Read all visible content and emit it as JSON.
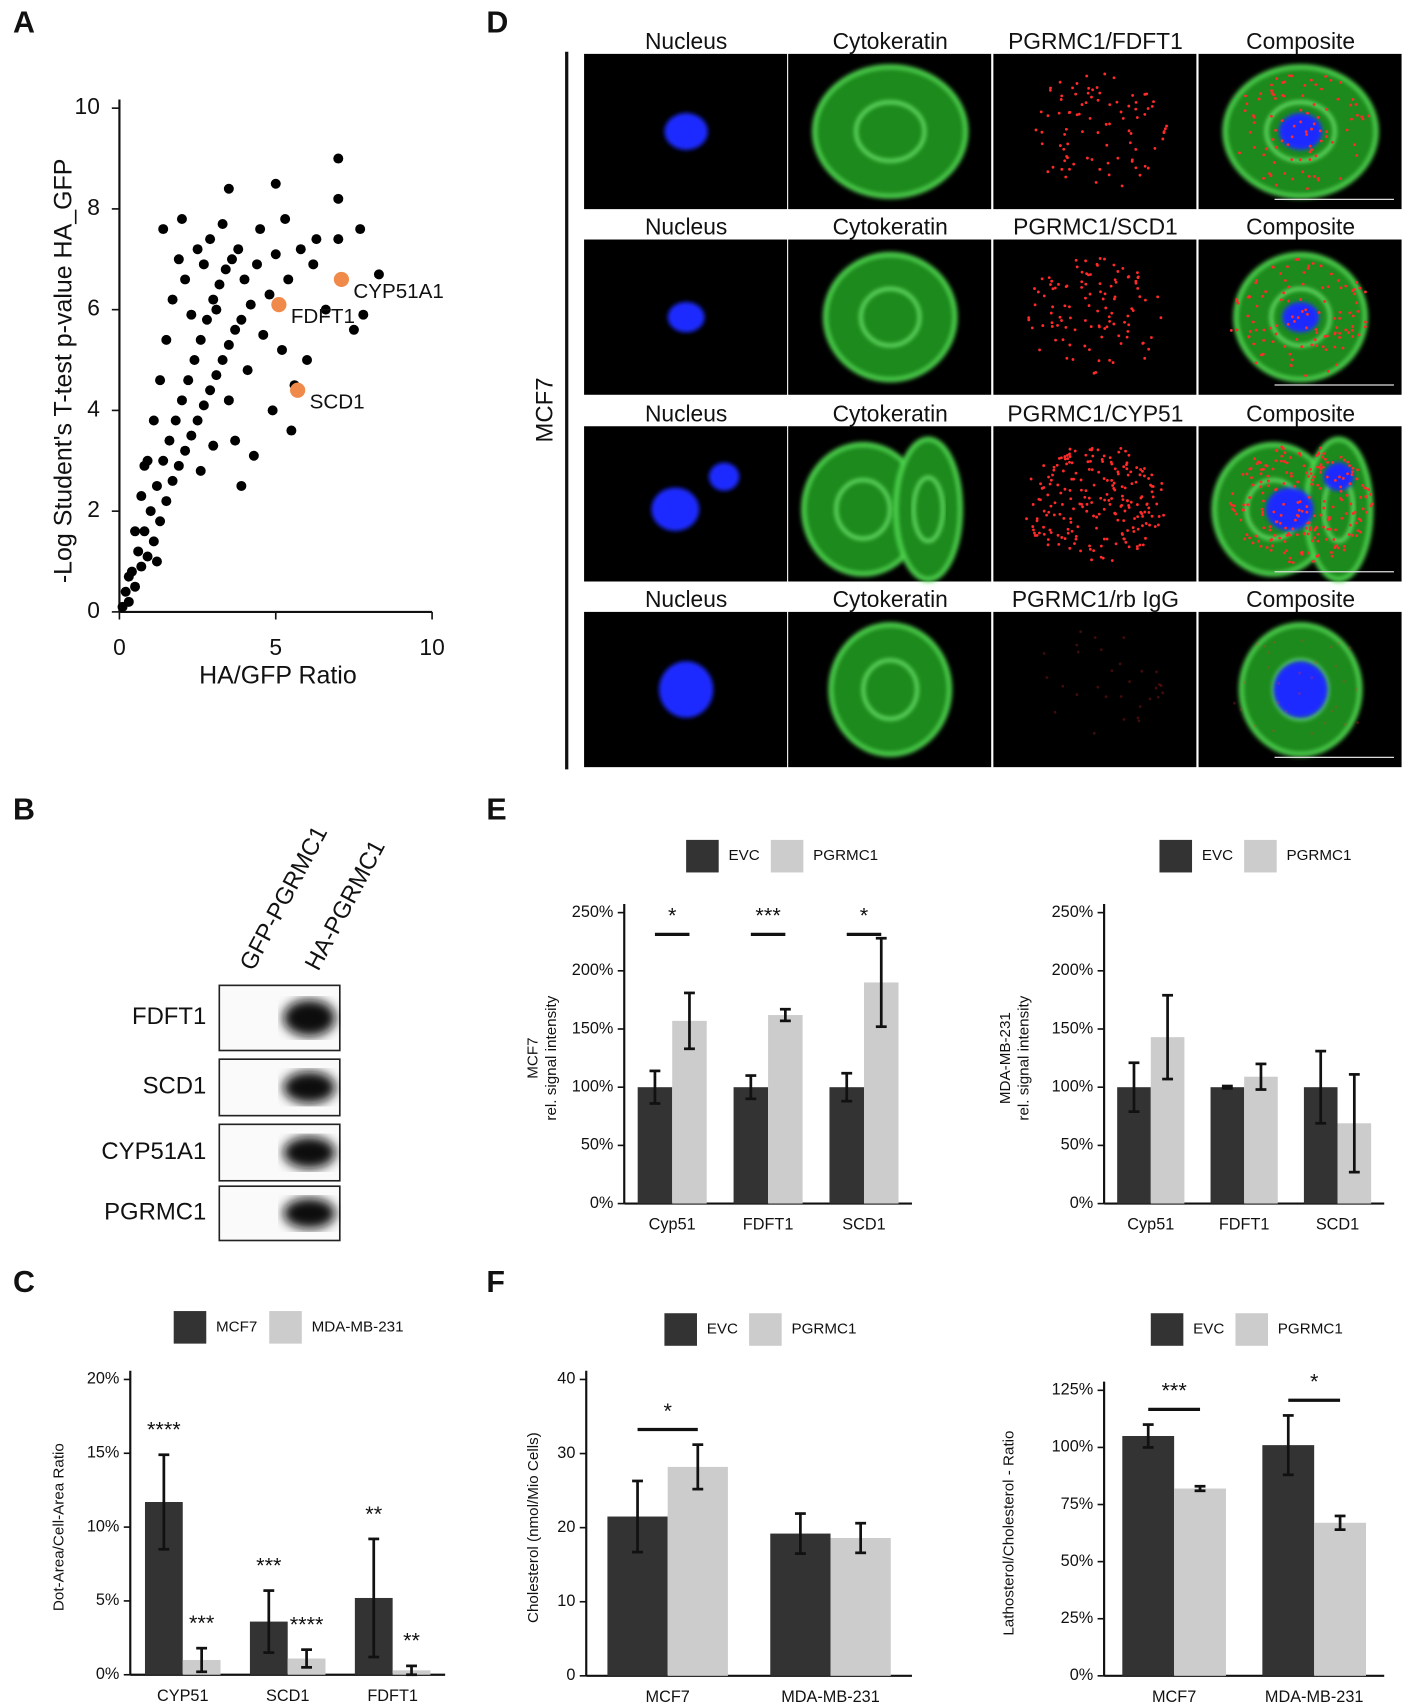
{
  "panel_labels": [
    "A",
    "B",
    "C",
    "D",
    "E",
    "F"
  ],
  "blot": {
    "lanes": [
      "GFP-PGRMC1",
      "HA-PGRMC1"
    ],
    "rows": [
      "FDFT1",
      "SCD1",
      "CYP51A1",
      "PGRMC1"
    ]
  },
  "micrographs": {
    "cell_line": "MCF7",
    "rows": [
      [
        "Nucleus",
        "Cytokeratin",
        "PGRMC1/FDFT1",
        "Composite"
      ],
      [
        "Nucleus",
        "Cytokeratin",
        "PGRMC1/SCD1",
        "Composite"
      ],
      [
        "Nucleus",
        "Cytokeratin",
        "PGRMC1/CYP51",
        "Composite"
      ],
      [
        "Nucleus",
        "Cytokeratin",
        "PGRMC1/rb IgG",
        "Composite"
      ]
    ]
  },
  "chart_data": [
    {
      "type": "scatter",
      "xlabel": "HA/GFP Ratio",
      "ylabel": "-Log Student's T-test p-value HA_GFP",
      "xlim": [
        0,
        10
      ],
      "ylim": [
        0,
        10
      ],
      "xticks": [
        0,
        5,
        10
      ],
      "yticks": [
        0,
        2,
        4,
        6,
        8,
        10
      ],
      "color": "#000000",
      "highlight_color": "#f08a4b",
      "x": [
        0.1,
        0.2,
        0.3,
        0.4,
        0.5,
        0.6,
        0.7,
        0.8,
        0.9,
        1.0,
        1.1,
        1.2,
        1.3,
        1.4,
        1.5,
        1.6,
        1.7,
        1.8,
        1.9,
        2.0,
        2.1,
        2.2,
        2.3,
        2.4,
        2.5,
        2.6,
        2.7,
        2.8,
        2.9,
        3.0,
        3.1,
        3.2,
        3.3,
        3.4,
        3.5,
        3.6,
        3.7,
        3.8,
        3.9,
        4.0,
        4.2,
        4.4,
        4.6,
        4.8,
        5.0,
        5.2,
        5.4,
        0.3,
        0.5,
        0.7,
        0.9,
        1.1,
        1.3,
        1.5,
        1.7,
        1.9,
        2.1,
        2.3,
        2.5,
        2.7,
        2.9,
        3.1,
        3.3,
        3.5,
        3.7,
        4.1,
        4.5,
        4.9,
        5.3,
        5.8,
        6.2,
        6.6,
        7.0,
        7.0,
        5.0,
        3.5,
        7.7,
        7.0,
        6.3,
        8.3,
        7.8,
        7.5,
        5.6,
        5.5,
        3.9,
        2.0,
        1.4,
        0.8,
        1.2,
        2.6,
        3.0,
        4.3,
        6.0
      ],
      "values": [
        0.1,
        0.4,
        0.2,
        0.8,
        0.5,
        1.2,
        0.9,
        1.6,
        1.1,
        2.0,
        1.4,
        2.5,
        1.8,
        3.0,
        2.2,
        3.4,
        2.6,
        3.8,
        2.9,
        4.2,
        3.2,
        4.6,
        3.5,
        5.0,
        3.8,
        5.4,
        4.1,
        5.8,
        4.4,
        6.2,
        4.7,
        6.5,
        5.0,
        6.8,
        5.3,
        7.0,
        5.6,
        7.2,
        5.8,
        6.6,
        6.1,
        6.9,
        5.5,
        6.3,
        7.1,
        5.2,
        6.6,
        0.7,
        1.6,
        2.3,
        3.0,
        3.8,
        4.6,
        5.4,
        6.2,
        7.0,
        6.6,
        5.9,
        7.2,
        6.9,
        7.4,
        6.0,
        7.7,
        4.2,
        3.4,
        4.8,
        7.6,
        4.0,
        7.8,
        7.2,
        6.9,
        6.0,
        9.0,
        8.2,
        8.5,
        8.4,
        7.6,
        7.4,
        7.4,
        6.7,
        5.9,
        5.6,
        4.5,
        3.6,
        2.5,
        7.8,
        7.6,
        2.9,
        1.0,
        2.8,
        3.3,
        3.1,
        5.0
      ],
      "annotations": [
        {
          "text": "FDFT1",
          "x": 5.1,
          "y": 6.1
        },
        {
          "text": "CYP51A1",
          "x": 7.1,
          "y": 6.6
        },
        {
          "text": "SCD1",
          "x": 5.7,
          "y": 4.4
        }
      ]
    },
    {
      "type": "bar",
      "ylabel": [
        "Dot-Area/Cell-Area Ratio"
      ],
      "legend": "top",
      "categories": [
        "CYP51",
        "SCD1",
        "FDFT1"
      ],
      "ylim": [
        0,
        20
      ],
      "yticks": [
        {
          "value": 0,
          "label": "0%"
        },
        {
          "value": 5,
          "label": "5%"
        },
        {
          "value": 10,
          "label": "10%"
        },
        {
          "value": 15,
          "label": "15%"
        },
        {
          "value": 20,
          "label": "20%"
        }
      ],
      "series": [
        {
          "name": "MCF7",
          "color": "#333333",
          "values": [
            11.7,
            3.6,
            5.2
          ],
          "errors": [
            3.2,
            2.1,
            4.0
          ],
          "significance": [
            "****",
            "***",
            "**"
          ]
        },
        {
          "name": "MDA-MB-231",
          "color": "#cccccc",
          "values": [
            1.0,
            1.1,
            0.3
          ],
          "errors": [
            0.8,
            0.6,
            0.3
          ],
          "significance": [
            "***",
            "****",
            "**"
          ]
        }
      ]
    },
    {
      "type": "bar",
      "ylabel": [
        "MCF7",
        "rel. signal intensity"
      ],
      "legend": "top",
      "categories": [
        "Cyp51",
        "FDFT1",
        "SCD1"
      ],
      "ylim": [
        0,
        250
      ],
      "yticks": [
        {
          "value": 0,
          "label": "0%"
        },
        {
          "value": 50,
          "label": "50%"
        },
        {
          "value": 100,
          "label": "100%"
        },
        {
          "value": 150,
          "label": "150%"
        },
        {
          "value": 200,
          "label": "200%"
        },
        {
          "value": 250,
          "label": "250%"
        }
      ],
      "significance": [
        "*",
        "***",
        "*"
      ],
      "series": [
        {
          "name": "EVC",
          "color": "#333333",
          "values": [
            100,
            100,
            100
          ],
          "errors": [
            14,
            10,
            12
          ]
        },
        {
          "name": "PGRMC1",
          "color": "#cccccc",
          "values": [
            157,
            162,
            190
          ],
          "errors": [
            24,
            5,
            38
          ]
        }
      ]
    },
    {
      "type": "bar",
      "ylabel": [
        "MDA-MB-231",
        "rel. signal intensity"
      ],
      "legend": "top",
      "categories": [
        "Cyp51",
        "FDFT1",
        "SCD1"
      ],
      "ylim": [
        0,
        250
      ],
      "yticks": [
        {
          "value": 0,
          "label": "0%"
        },
        {
          "value": 50,
          "label": "50%"
        },
        {
          "value": 100,
          "label": "100%"
        },
        {
          "value": 150,
          "label": "150%"
        },
        {
          "value": 200,
          "label": "200%"
        },
        {
          "value": 250,
          "label": "250%"
        }
      ],
      "series": [
        {
          "name": "EVC",
          "color": "#333333",
          "values": [
            100,
            100,
            100
          ],
          "errors": [
            21,
            1,
            31
          ]
        },
        {
          "name": "PGRMC1",
          "color": "#cccccc",
          "values": [
            143,
            109,
            69
          ],
          "errors": [
            36,
            11,
            42
          ]
        }
      ]
    },
    {
      "type": "bar",
      "ylabel": [
        "Cholesterol (nmol/Mio Cells)"
      ],
      "legend": "top",
      "categories": [
        "MCF7",
        "MDA-MB-231"
      ],
      "ylim": [
        0,
        40
      ],
      "yticks": [
        0,
        10,
        20,
        30,
        40
      ],
      "significance": [
        "*",
        null
      ],
      "series": [
        {
          "name": "EVC",
          "color": "#333333",
          "values": [
            21.5,
            19.2
          ],
          "errors": [
            4.8,
            2.7
          ]
        },
        {
          "name": "PGRMC1",
          "color": "#cccccc",
          "values": [
            28.2,
            18.6
          ],
          "errors": [
            3.0,
            2.0
          ]
        }
      ]
    },
    {
      "type": "bar",
      "ylabel": [
        "Lathosterol/Cholesterol - Ratio"
      ],
      "legend": "top",
      "categories": [
        "MCF7",
        "MDA-MB-231"
      ],
      "ylim": [
        0,
        125
      ],
      "yticks": [
        {
          "value": 0,
          "label": "0%"
        },
        {
          "value": 25,
          "label": "25%"
        },
        {
          "value": 50,
          "label": "50%"
        },
        {
          "value": 75,
          "label": "75%"
        },
        {
          "value": 100,
          "label": "100%"
        },
        {
          "value": 125,
          "label": "125%"
        }
      ],
      "significance": [
        "***",
        "*"
      ],
      "series": [
        {
          "name": "EVC",
          "color": "#333333",
          "values": [
            105,
            101
          ],
          "errors": [
            5,
            13
          ]
        },
        {
          "name": "PGRMC1",
          "color": "#cccccc",
          "values": [
            82,
            67
          ],
          "errors": [
            1,
            3
          ]
        }
      ]
    }
  ]
}
